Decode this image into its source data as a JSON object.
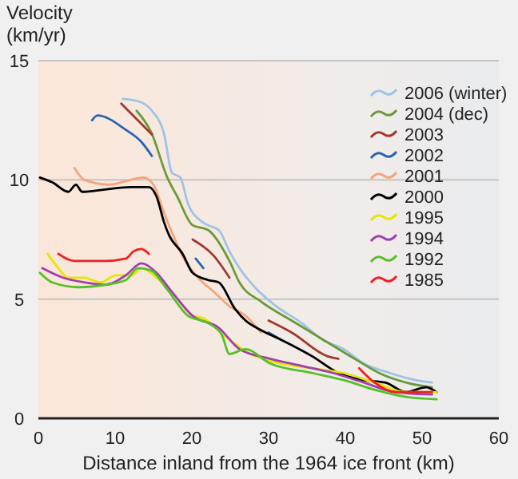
{
  "chart_data": {
    "type": "line",
    "xlabel": "Distance inland from the 1964 ice front (km)",
    "ylabel": "Velocity\n(km/yr)",
    "xlim": [
      0,
      60
    ],
    "ylim": [
      0,
      15
    ],
    "xticks": [
      0,
      10,
      20,
      30,
      40,
      50,
      60
    ],
    "yticks": [
      0,
      5,
      10,
      15
    ],
    "grid": "y",
    "legend": "top right",
    "line_style": "solid",
    "marker": "none",
    "series": [
      {
        "name": "2006 (winter)",
        "color": "#9ec3e6",
        "x": [
          11,
          13,
          14.8,
          16.4,
          17.4,
          18.5,
          19.5,
          21.1,
          22.1,
          23.5,
          24.9,
          26.2,
          28.2,
          31,
          34.3,
          37,
          39.8,
          42.4,
          45.8,
          49.2,
          51.3
        ],
        "values": [
          13.4,
          13.3,
          12.9,
          11.9,
          10.3,
          10.1,
          9,
          8.3,
          8.1,
          7.9,
          7,
          6.3,
          5.5,
          4.7,
          4,
          3.3,
          2.9,
          2.3,
          1.9,
          1.6,
          1.5
        ]
      },
      {
        "name": "2004 (dec)",
        "color": "#6b9a3a",
        "x": [
          12.8,
          14.7,
          16.8,
          18.1,
          20.1,
          22.1,
          24.9,
          26.2,
          29,
          33,
          37.1,
          41.2,
          44.4,
          47.9,
          51.3
        ],
        "values": [
          12.9,
          12.0,
          10.1,
          9.3,
          8.1,
          7.9,
          6.6,
          5.7,
          4.9,
          4.1,
          3.3,
          2.5,
          1.9,
          1.5,
          1.3
        ]
      },
      {
        "name": "2003",
        "color": "#a0392f",
        "x": [
          10.8,
          14.8,
          17,
          20.1,
          22.9,
          24.9,
          27,
          30,
          33,
          37.7,
          39.1
        ],
        "values": [
          13.2,
          11.9,
          null,
          7.5,
          6.8,
          5.9,
          null,
          4.1,
          3.6,
          2.6,
          2.5
        ]
      },
      {
        "name": "2002",
        "color": "#2a63b0",
        "x": [
          7,
          7.7,
          11.4,
          13.4,
          14.8,
          16,
          20.5,
          21.5,
          25,
          30,
          31.6
        ],
        "values": [
          12.5,
          12.7,
          12.1,
          11.6,
          11.0,
          null,
          6.7,
          6.3,
          null,
          3.6,
          3.3
        ]
      },
      {
        "name": "2001",
        "color": "#f4a57a",
        "x": [
          4.7,
          6,
          9.3,
          12,
          13.7,
          15,
          16.4,
          17.4,
          18.8,
          20.8,
          22.9,
          24.9,
          27,
          29
        ],
        "values": [
          10.5,
          10,
          9.8,
          10,
          10.1,
          9.8,
          8.6,
          7.8,
          6.8,
          5.9,
          5.3,
          4.7,
          4.3,
          3.6
        ]
      },
      {
        "name": "2000",
        "color": "#000000",
        "x": [
          0.2,
          1.8,
          3.9,
          4.9,
          5.7,
          8.7,
          12,
          14.4,
          15.4,
          16.4,
          17,
          18.8,
          20.1,
          22.1,
          23.5,
          25.6,
          27,
          29,
          31.6,
          35.7,
          39.1,
          42.4,
          45.2,
          47.9,
          50.5,
          51.9
        ],
        "values": [
          10.1,
          9.9,
          9.5,
          9.8,
          9.5,
          9.6,
          9.7,
          9.7,
          9.3,
          8.2,
          7.7,
          6.9,
          6.1,
          5.8,
          5.7,
          4.6,
          4.1,
          3.7,
          3.3,
          2.6,
          1.9,
          1.6,
          1.5,
          1.1,
          1.3,
          1.1
        ]
      },
      {
        "name": "1995",
        "color": "#e6e600",
        "x": [
          1.2,
          2.6,
          3.9,
          5.9,
          8.1,
          10.1,
          12.2,
          13.4,
          15.4,
          17.4,
          20.1,
          21.5,
          24.1,
          27.6,
          31.6,
          35.7,
          39.8,
          43.8,
          47.9,
          51.9
        ],
        "values": [
          6.9,
          6.3,
          5.9,
          5.9,
          5.7,
          6.0,
          6.0,
          6.3,
          5.9,
          5.3,
          4.3,
          4.2,
          3.5,
          2.7,
          2.3,
          2.1,
          1.9,
          1.5,
          1.1,
          1.1
        ]
      },
      {
        "name": "1994",
        "color": "#a040b0",
        "x": [
          0.5,
          3.2,
          6,
          8.7,
          11.4,
          13.4,
          15.4,
          17.4,
          20.1,
          23.5,
          26.2,
          30.2,
          34.3,
          38.4,
          42.4,
          46.5,
          51.3
        ],
        "values": [
          6.3,
          5.9,
          5.7,
          5.6,
          6.0,
          6.5,
          6.1,
          5.3,
          4.3,
          3.8,
          2.9,
          2.5,
          2.2,
          1.9,
          1.5,
          1.1,
          1.0
        ]
      },
      {
        "name": "1992",
        "color": "#55c02a",
        "x": [
          0.2,
          1.8,
          5.3,
          8.7,
          11.4,
          13,
          14.7,
          16.8,
          19.5,
          22.1,
          23.9,
          24.9,
          27,
          30.2,
          35.7,
          39.8,
          43.8,
          47.9,
          51.9
        ],
        "values": [
          6.1,
          5.7,
          5.5,
          5.6,
          5.8,
          6.3,
          6.2,
          5.4,
          4.3,
          4.0,
          3.5,
          2.7,
          2.9,
          2.3,
          1.9,
          1.6,
          1.2,
          0.9,
          0.8
        ]
      },
      {
        "name": "1985",
        "color": "#ee2020",
        "x": [
          2.6,
          4.7,
          8.7,
          11.4,
          12.4,
          13.4,
          14.4,
          30,
          41.8,
          43.8,
          46.5,
          51.3
        ],
        "values": [
          6.9,
          6.6,
          6.6,
          6.7,
          7.0,
          7.1,
          6.9,
          null,
          2.1,
          1.5,
          1.1,
          1.1
        ]
      }
    ]
  }
}
